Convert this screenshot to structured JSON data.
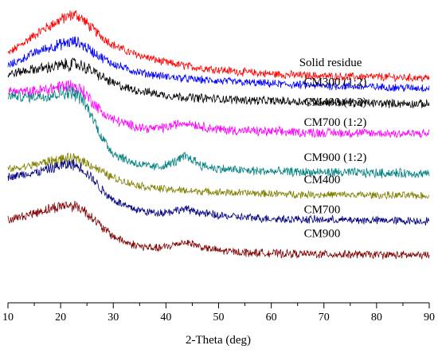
{
  "chart_data": {
    "type": "line",
    "title": "",
    "xlabel": "2-Theta (deg)",
    "ylabel": "",
    "xlim": [
      10,
      90
    ],
    "xticks": [
      10,
      20,
      30,
      40,
      50,
      60,
      70,
      80,
      90
    ],
    "x_minor_step": 5,
    "y_axis_shown": false,
    "ylim": [
      0,
      1
    ],
    "grid": false,
    "legend": "none",
    "noise": "random high-frequency noise added for display",
    "series": [
      {
        "name": "Solid residue",
        "color": "#ff0000",
        "noise_amplitude": 0.012,
        "x": [
          10,
          12,
          14,
          16,
          18,
          20,
          22,
          23,
          24,
          26,
          28,
          30,
          33,
          36,
          40,
          45,
          50,
          55,
          60,
          65,
          70,
          75,
          80,
          85,
          90
        ],
        "y": [
          0.84,
          0.865,
          0.89,
          0.915,
          0.935,
          0.955,
          0.97,
          0.972,
          0.96,
          0.925,
          0.895,
          0.87,
          0.845,
          0.83,
          0.81,
          0.796,
          0.786,
          0.778,
          0.772,
          0.768,
          0.765,
          0.763,
          0.762,
          0.76,
          0.758
        ]
      },
      {
        "name": "CM300 (1:2)",
        "color": "#0000ff",
        "noise_amplitude": 0.012,
        "x": [
          10,
          12,
          14,
          16,
          18,
          20,
          22,
          23,
          24,
          26,
          28,
          30,
          33,
          36,
          40,
          45,
          50,
          55,
          60,
          65,
          70,
          75,
          80,
          85,
          90
        ],
        "y": [
          0.8,
          0.815,
          0.835,
          0.85,
          0.862,
          0.872,
          0.88,
          0.88,
          0.872,
          0.848,
          0.825,
          0.806,
          0.786,
          0.774,
          0.763,
          0.754,
          0.748,
          0.743,
          0.739,
          0.735,
          0.732,
          0.73,
          0.728,
          0.726,
          0.724
        ]
      },
      {
        "name": "CM400 (1:2)",
        "color": "#000000",
        "noise_amplitude": 0.013,
        "x": [
          10,
          12,
          14,
          16,
          18,
          20,
          22,
          23,
          24,
          26,
          28,
          30,
          33,
          36,
          40,
          45,
          50,
          55,
          60,
          65,
          70,
          75,
          80,
          85,
          90
        ],
        "y": [
          0.77,
          0.778,
          0.785,
          0.79,
          0.795,
          0.8,
          0.805,
          0.804,
          0.8,
          0.782,
          0.76,
          0.74,
          0.722,
          0.712,
          0.7,
          0.692,
          0.688,
          0.684,
          0.681,
          0.679,
          0.677,
          0.675,
          0.673,
          0.672,
          0.67
        ]
      },
      {
        "name": "CM700 (1:2)",
        "color": "#ff00ff",
        "noise_amplitude": 0.014,
        "x": [
          10,
          12,
          14,
          16,
          18,
          20,
          22,
          24,
          26,
          28,
          30,
          33,
          36,
          38,
          40,
          42,
          43.5,
          45,
          47,
          50,
          55,
          60,
          65,
          70,
          75,
          80,
          85,
          90
        ],
        "y": [
          0.715,
          0.712,
          0.712,
          0.716,
          0.722,
          0.73,
          0.732,
          0.718,
          0.68,
          0.64,
          0.618,
          0.6,
          0.59,
          0.588,
          0.592,
          0.602,
          0.608,
          0.604,
          0.594,
          0.585,
          0.58,
          0.577,
          0.575,
          0.574,
          0.573,
          0.572,
          0.571,
          0.57
        ]
      },
      {
        "name": "CM900 (1:2)",
        "color": "#008080",
        "noise_amplitude": 0.014,
        "x": [
          10,
          12,
          14,
          16,
          18,
          20,
          22,
          24,
          26,
          28,
          30,
          33,
          36,
          38,
          40,
          42,
          43.5,
          45,
          47,
          50,
          55,
          60,
          65,
          70,
          75,
          80,
          85,
          90
        ],
        "y": [
          0.7,
          0.695,
          0.694,
          0.697,
          0.7,
          0.708,
          0.712,
          0.69,
          0.628,
          0.552,
          0.505,
          0.478,
          0.462,
          0.458,
          0.464,
          0.478,
          0.494,
          0.484,
          0.462,
          0.452,
          0.446,
          0.443,
          0.441,
          0.44,
          0.439,
          0.438,
          0.437,
          0.436
        ]
      },
      {
        "name": "CM400",
        "color": "#808000",
        "noise_amplitude": 0.011,
        "x": [
          10,
          12,
          14,
          16,
          18,
          20,
          22,
          24,
          26,
          28,
          30,
          33,
          36,
          40,
          45,
          50,
          55,
          60,
          65,
          70,
          75,
          80,
          85,
          90
        ],
        "y": [
          0.45,
          0.455,
          0.462,
          0.47,
          0.478,
          0.484,
          0.486,
          0.48,
          0.463,
          0.44,
          0.422,
          0.404,
          0.392,
          0.383,
          0.377,
          0.373,
          0.37,
          0.368,
          0.366,
          0.365,
          0.364,
          0.363,
          0.362,
          0.361
        ]
      },
      {
        "name": "CM700",
        "color": "#000080",
        "noise_amplitude": 0.012,
        "x": [
          10,
          12,
          14,
          16,
          18,
          20,
          22,
          24,
          26,
          28,
          30,
          33,
          36,
          38,
          40,
          42,
          43.5,
          45,
          47,
          50,
          55,
          60,
          65,
          70,
          75,
          80,
          85,
          90
        ],
        "y": [
          0.425,
          0.43,
          0.436,
          0.442,
          0.452,
          0.462,
          0.468,
          0.455,
          0.42,
          0.378,
          0.348,
          0.322,
          0.308,
          0.304,
          0.306,
          0.312,
          0.316,
          0.312,
          0.302,
          0.294,
          0.288,
          0.284,
          0.282,
          0.28,
          0.279,
          0.278,
          0.277,
          0.276
        ]
      },
      {
        "name": "CM900",
        "color": "#800000",
        "noise_amplitude": 0.012,
        "x": [
          10,
          12,
          14,
          16,
          18,
          20,
          22,
          24,
          26,
          28,
          30,
          33,
          36,
          38,
          40,
          42,
          43.5,
          45,
          47,
          50,
          55,
          60,
          65,
          70,
          75,
          80,
          85,
          90
        ],
        "y": [
          0.28,
          0.288,
          0.298,
          0.308,
          0.318,
          0.326,
          0.33,
          0.318,
          0.288,
          0.252,
          0.224,
          0.2,
          0.188,
          0.184,
          0.188,
          0.198,
          0.206,
          0.2,
          0.186,
          0.176,
          0.17,
          0.167,
          0.165,
          0.164,
          0.163,
          0.162,
          0.161,
          0.16
        ]
      }
    ]
  }
}
